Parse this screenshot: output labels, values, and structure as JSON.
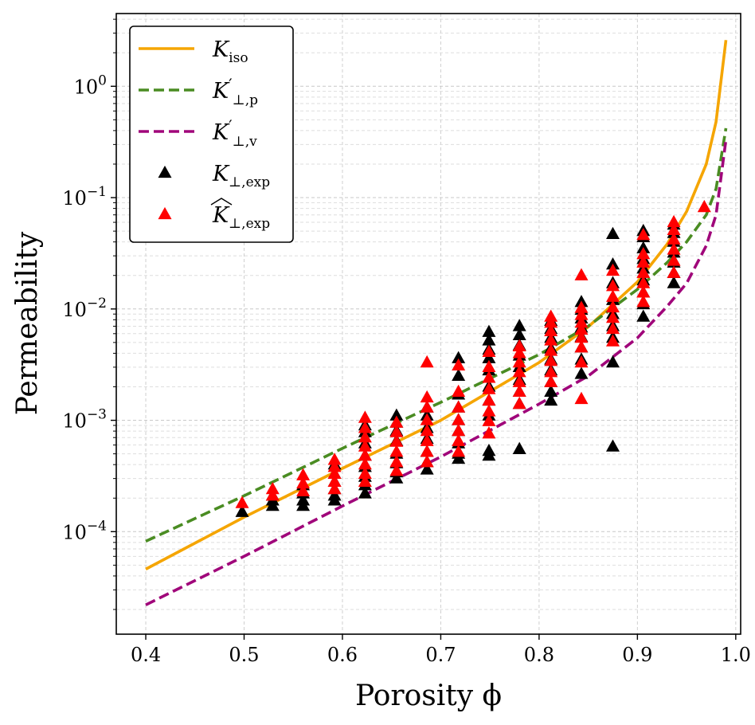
{
  "chart_data": {
    "type": "scatter",
    "title": "",
    "xlabel": "Porosity ϕ",
    "ylabel": "Permeability",
    "xlim": [
      0.37,
      1.005
    ],
    "ylim": [
      1.2e-05,
      4.5
    ],
    "yscale": "log",
    "x_ticks": [
      0.4,
      0.5,
      0.6,
      0.7,
      0.8,
      0.9,
      1.0
    ],
    "x_tick_labels": [
      "0.4",
      "0.5",
      "0.6",
      "0.7",
      "0.8",
      "0.9",
      "1.0"
    ],
    "y_ticks": [
      0.0001,
      0.001,
      0.01,
      0.1,
      1
    ],
    "y_tick_labels": [
      {
        "base": "10",
        "exp": "−4"
      },
      {
        "base": "10",
        "exp": "−3"
      },
      {
        "base": "10",
        "exp": "−2"
      },
      {
        "base": "10",
        "exp": "−1"
      },
      {
        "base": "10",
        "exp": "0"
      }
    ],
    "grid": true,
    "legend_position": "top-left",
    "legend": [
      {
        "main": "K",
        "sub": "iso",
        "hat": false,
        "prime": false,
        "style": "solid",
        "color": "#f5a500"
      },
      {
        "main": "K",
        "sub": "⊥,p",
        "hat": false,
        "prime": true,
        "style": "dashed",
        "color": "#4a8c22"
      },
      {
        "main": "K",
        "sub": "⊥,v",
        "hat": false,
        "prime": true,
        "style": "dashed",
        "color": "#a0067a"
      },
      {
        "main": "K",
        "sub": "⊥,exp",
        "hat": false,
        "prime": false,
        "style": "triangle",
        "color": "#000000"
      },
      {
        "main": "K",
        "sub": "⊥,exp",
        "hat": true,
        "prime": false,
        "style": "triangle",
        "color": "#ff0000"
      }
    ],
    "series": [
      {
        "kind": "line",
        "style": "solid",
        "color": "#f5a500",
        "x": [
          0.4,
          0.5,
          0.6,
          0.7,
          0.8,
          0.85,
          0.9,
          0.93,
          0.95,
          0.97,
          0.98,
          0.99
        ],
        "y": [
          4.6e-05,
          0.000135,
          0.00037,
          0.001,
          0.0033,
          0.0069,
          0.0175,
          0.038,
          0.075,
          0.2,
          0.48,
          2.6
        ]
      },
      {
        "kind": "line",
        "style": "dashed",
        "color": "#4a8c22",
        "x": [
          0.4,
          0.5,
          0.6,
          0.7,
          0.8,
          0.85,
          0.9,
          0.93,
          0.95,
          0.97,
          0.98,
          0.99
        ],
        "y": [
          8.2e-05,
          0.00021,
          0.00056,
          0.00145,
          0.0039,
          0.007,
          0.015,
          0.026,
          0.04,
          0.07,
          0.12,
          0.42
        ]
      },
      {
        "kind": "line",
        "style": "dashed",
        "color": "#a0067a",
        "x": [
          0.4,
          0.5,
          0.6,
          0.7,
          0.8,
          0.85,
          0.9,
          0.93,
          0.95,
          0.97,
          0.98,
          0.99
        ],
        "y": [
          2.2e-05,
          6e-05,
          0.00017,
          0.00047,
          0.0014,
          0.0025,
          0.0055,
          0.0105,
          0.017,
          0.037,
          0.07,
          0.33
        ]
      },
      {
        "kind": "points",
        "marker": "triangle",
        "color": "#000000",
        "points": [
          [
            0.498,
            0.00015
          ],
          [
            0.529,
            0.00017
          ],
          [
            0.529,
            0.00019
          ],
          [
            0.529,
            0.00021
          ],
          [
            0.56,
            0.00017
          ],
          [
            0.56,
            0.00019
          ],
          [
            0.56,
            0.00022
          ],
          [
            0.56,
            0.00026
          ],
          [
            0.592,
            0.00019
          ],
          [
            0.592,
            0.00021
          ],
          [
            0.592,
            0.00024
          ],
          [
            0.592,
            0.00028
          ],
          [
            0.592,
            0.00033
          ],
          [
            0.592,
            0.0004
          ],
          [
            0.623,
            0.00022
          ],
          [
            0.623,
            0.00026
          ],
          [
            0.623,
            0.00031
          ],
          [
            0.623,
            0.00038
          ],
          [
            0.623,
            0.00048
          ],
          [
            0.623,
            0.00062
          ],
          [
            0.623,
            0.00078
          ],
          [
            0.623,
            0.0009
          ],
          [
            0.655,
            0.0003
          ],
          [
            0.655,
            0.00034
          ],
          [
            0.655,
            0.00041
          ],
          [
            0.655,
            0.0005
          ],
          [
            0.655,
            0.00065
          ],
          [
            0.655,
            0.0008
          ],
          [
            0.655,
            0.00095
          ],
          [
            0.655,
            0.0011
          ],
          [
            0.686,
            0.00036
          ],
          [
            0.686,
            0.00042
          ],
          [
            0.686,
            0.00052
          ],
          [
            0.686,
            0.00068
          ],
          [
            0.686,
            0.00085
          ],
          [
            0.686,
            0.0011
          ],
          [
            0.686,
            0.0013
          ],
          [
            0.718,
            0.00045
          ],
          [
            0.718,
            0.0005
          ],
          [
            0.718,
            0.00062
          ],
          [
            0.718,
            0.0008
          ],
          [
            0.718,
            0.001
          ],
          [
            0.718,
            0.0013
          ],
          [
            0.718,
            0.0017
          ],
          [
            0.718,
            0.0025
          ],
          [
            0.718,
            0.0036
          ],
          [
            0.749,
            0.00048
          ],
          [
            0.749,
            0.00053
          ],
          [
            0.749,
            0.0011
          ],
          [
            0.749,
            0.0015
          ],
          [
            0.749,
            0.002
          ],
          [
            0.749,
            0.0028
          ],
          [
            0.749,
            0.0036
          ],
          [
            0.749,
            0.0043
          ],
          [
            0.749,
            0.0052
          ],
          [
            0.749,
            0.0062
          ],
          [
            0.78,
            0.00055
          ],
          [
            0.78,
            0.0014
          ],
          [
            0.78,
            0.0018
          ],
          [
            0.78,
            0.0023
          ],
          [
            0.78,
            0.003
          ],
          [
            0.78,
            0.0038
          ],
          [
            0.78,
            0.0047
          ],
          [
            0.78,
            0.0058
          ],
          [
            0.78,
            0.007
          ],
          [
            0.812,
            0.0015
          ],
          [
            0.812,
            0.0018
          ],
          [
            0.812,
            0.0022
          ],
          [
            0.812,
            0.0028
          ],
          [
            0.812,
            0.0035
          ],
          [
            0.812,
            0.0044
          ],
          [
            0.812,
            0.0055
          ],
          [
            0.812,
            0.0066
          ],
          [
            0.812,
            0.0078
          ],
          [
            0.843,
            0.0026
          ],
          [
            0.843,
            0.0035
          ],
          [
            0.843,
            0.0045
          ],
          [
            0.843,
            0.0056
          ],
          [
            0.843,
            0.0068
          ],
          [
            0.843,
            0.0082
          ],
          [
            0.843,
            0.0098
          ],
          [
            0.843,
            0.0115
          ],
          [
            0.875,
            0.00058
          ],
          [
            0.875,
            0.0033
          ],
          [
            0.875,
            0.0055
          ],
          [
            0.875,
            0.007
          ],
          [
            0.875,
            0.009
          ],
          [
            0.875,
            0.012
          ],
          [
            0.875,
            0.017
          ],
          [
            0.875,
            0.025
          ],
          [
            0.875,
            0.047
          ],
          [
            0.906,
            0.0085
          ],
          [
            0.906,
            0.011
          ],
          [
            0.906,
            0.014
          ],
          [
            0.906,
            0.018
          ],
          [
            0.906,
            0.023
          ],
          [
            0.906,
            0.028
          ],
          [
            0.906,
            0.035
          ],
          [
            0.906,
            0.044
          ],
          [
            0.906,
            0.05
          ],
          [
            0.937,
            0.017
          ],
          [
            0.937,
            0.021
          ],
          [
            0.937,
            0.026
          ],
          [
            0.937,
            0.032
          ],
          [
            0.937,
            0.04
          ],
          [
            0.937,
            0.048
          ],
          [
            0.937,
            0.057
          ]
        ]
      },
      {
        "kind": "points",
        "marker": "triangle",
        "color": "#ff0000",
        "points": [
          [
            0.498,
            0.00018
          ],
          [
            0.529,
            0.00021
          ],
          [
            0.529,
            0.00024
          ],
          [
            0.56,
            0.00023
          ],
          [
            0.56,
            0.00027
          ],
          [
            0.56,
            0.00032
          ],
          [
            0.592,
            0.00024
          ],
          [
            0.592,
            0.00028
          ],
          [
            0.592,
            0.00033
          ],
          [
            0.592,
            0.00038
          ],
          [
            0.592,
            0.00044
          ],
          [
            0.623,
            0.00028
          ],
          [
            0.623,
            0.00033
          ],
          [
            0.623,
            0.0004
          ],
          [
            0.623,
            0.00048
          ],
          [
            0.623,
            0.00058
          ],
          [
            0.623,
            0.0007
          ],
          [
            0.623,
            0.00085
          ],
          [
            0.623,
            0.00105
          ],
          [
            0.655,
            0.00035
          ],
          [
            0.655,
            0.00042
          ],
          [
            0.655,
            0.00052
          ],
          [
            0.655,
            0.00064
          ],
          [
            0.655,
            0.00078
          ],
          [
            0.655,
            0.00095
          ],
          [
            0.686,
            0.00042
          ],
          [
            0.686,
            0.00052
          ],
          [
            0.686,
            0.00065
          ],
          [
            0.686,
            0.0008
          ],
          [
            0.686,
            0.001
          ],
          [
            0.686,
            0.0013
          ],
          [
            0.686,
            0.0016
          ],
          [
            0.686,
            0.0033
          ],
          [
            0.718,
            0.00052
          ],
          [
            0.718,
            0.00065
          ],
          [
            0.718,
            0.0008
          ],
          [
            0.718,
            0.001
          ],
          [
            0.718,
            0.0013
          ],
          [
            0.718,
            0.0018
          ],
          [
            0.718,
            0.0031
          ],
          [
            0.749,
            0.00076
          ],
          [
            0.749,
            0.00098
          ],
          [
            0.749,
            0.0012
          ],
          [
            0.749,
            0.0015
          ],
          [
            0.749,
            0.0019
          ],
          [
            0.749,
            0.0024
          ],
          [
            0.749,
            0.003
          ],
          [
            0.749,
            0.0041
          ],
          [
            0.78,
            0.0014
          ],
          [
            0.78,
            0.0018
          ],
          [
            0.78,
            0.0022
          ],
          [
            0.78,
            0.0027
          ],
          [
            0.78,
            0.0033
          ],
          [
            0.78,
            0.004
          ],
          [
            0.78,
            0.0046
          ],
          [
            0.812,
            0.0022
          ],
          [
            0.812,
            0.0027
          ],
          [
            0.812,
            0.0034
          ],
          [
            0.812,
            0.0042
          ],
          [
            0.812,
            0.0052
          ],
          [
            0.812,
            0.0063
          ],
          [
            0.812,
            0.0075
          ],
          [
            0.812,
            0.0085
          ],
          [
            0.843,
            0.00155
          ],
          [
            0.843,
            0.0033
          ],
          [
            0.843,
            0.0045
          ],
          [
            0.843,
            0.0055
          ],
          [
            0.843,
            0.0065
          ],
          [
            0.843,
            0.0075
          ],
          [
            0.843,
            0.0088
          ],
          [
            0.843,
            0.0102
          ],
          [
            0.843,
            0.02
          ],
          [
            0.875,
            0.0051
          ],
          [
            0.875,
            0.0066
          ],
          [
            0.875,
            0.0083
          ],
          [
            0.875,
            0.0103
          ],
          [
            0.875,
            0.0128
          ],
          [
            0.875,
            0.016
          ],
          [
            0.875,
            0.022
          ],
          [
            0.906,
            0.0115
          ],
          [
            0.906,
            0.014
          ],
          [
            0.906,
            0.017
          ],
          [
            0.906,
            0.021
          ],
          [
            0.906,
            0.026
          ],
          [
            0.906,
            0.031
          ],
          [
            0.906,
            0.046
          ],
          [
            0.937,
            0.021
          ],
          [
            0.937,
            0.027
          ],
          [
            0.937,
            0.034
          ],
          [
            0.937,
            0.042
          ],
          [
            0.937,
            0.051
          ],
          [
            0.937,
            0.06
          ],
          [
            0.968,
            0.082
          ]
        ]
      }
    ]
  }
}
